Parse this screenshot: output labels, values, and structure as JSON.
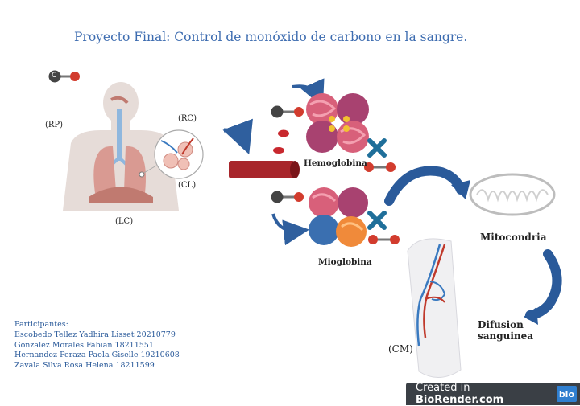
{
  "title": "Proyecto Final: Control de monóxido de carbono en la sangre.",
  "labels": {
    "rp": "(RP)",
    "rc": "(RC)",
    "cl": "(CL)",
    "lc": "(LC)",
    "cm": "(CM)",
    "hemoglobina": "Hemoglobina",
    "mioglobina": "Mioglobina",
    "mitocondria": "Mitocondria",
    "difusion_line1": "Difusion",
    "difusion_line2": "sanguinea"
  },
  "molecule": {
    "carbon": "C",
    "oxygen": "O"
  },
  "participants": {
    "heading": "Participantes:",
    "names": [
      "Escobedo Tellez Yadhira Lisset 20210779",
      "Gonzalez Morales Fabian 18211551",
      "Hernandez Peraza Paola Giselle 19210608",
      "Zavala Silva Rosa Helena 18211599"
    ]
  },
  "badge": {
    "prefix": "Created in ",
    "brand": "BioRender.com",
    "logo": "bio"
  },
  "colors": {
    "title": "#3d6cb0",
    "arrow": "#2f5f9e",
    "vessel": "#a8262b",
    "cross": "#1f6f9a",
    "carbon": "#444444",
    "oxygen": "#c0392b"
  }
}
